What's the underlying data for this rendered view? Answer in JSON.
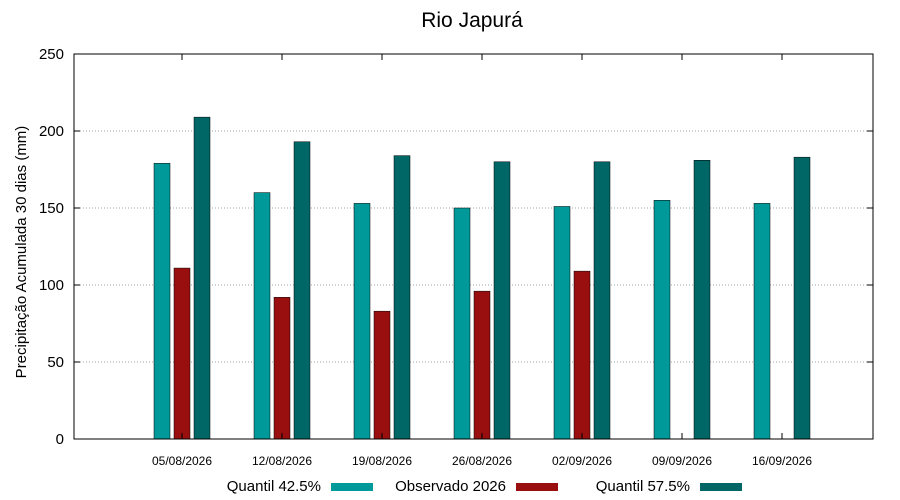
{
  "chart_data": {
    "type": "bar",
    "title": "Rio Japurá",
    "xlabel": "",
    "ylabel": "Precipitação Acumulada 30 dias (mm)",
    "ylim": [
      0,
      250
    ],
    "yticks": [
      0,
      50,
      100,
      150,
      200,
      250
    ],
    "grid": true,
    "legend_position": "bottom",
    "categories": [
      "05/08/2026",
      "12/08/2026",
      "19/08/2026",
      "26/08/2026",
      "02/09/2026",
      "09/09/2026",
      "16/09/2026"
    ],
    "series": [
      {
        "name": "Quantil 42.5%",
        "color": "#009999",
        "values": [
          179,
          160,
          153,
          150,
          151,
          155,
          153
        ]
      },
      {
        "name": "Observado 2026",
        "color": "#990f0f",
        "values": [
          111,
          92,
          83,
          96,
          109,
          null,
          null
        ]
      },
      {
        "name": "Quantil 57.5%",
        "color": "#006666",
        "values": [
          209,
          193,
          184,
          180,
          180,
          181,
          183
        ]
      }
    ]
  }
}
